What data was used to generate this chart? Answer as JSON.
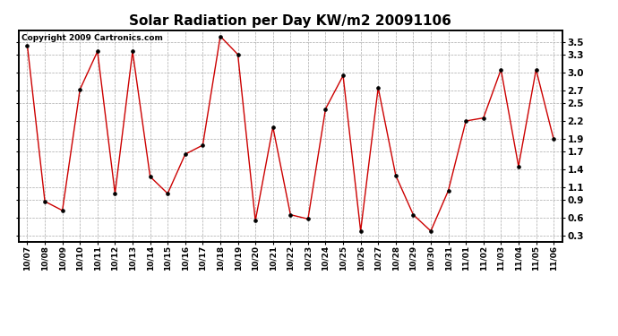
{
  "title": "Solar Radiation per Day KW/m2 20091106",
  "copyright": "Copyright 2009 Cartronics.com",
  "labels": [
    "10/07",
    "10/08",
    "10/09",
    "10/10",
    "10/11",
    "10/12",
    "10/13",
    "10/14",
    "10/15",
    "10/16",
    "10/17",
    "10/18",
    "10/19",
    "10/20",
    "10/21",
    "10/22",
    "10/23",
    "10/24",
    "10/25",
    "10/26",
    "10/27",
    "10/28",
    "10/29",
    "10/30",
    "10/31",
    "11/01",
    "11/02",
    "11/03",
    "11/04",
    "11/05",
    "11/06"
  ],
  "values": [
    3.45,
    0.87,
    0.72,
    2.72,
    3.35,
    1.0,
    3.35,
    1.28,
    1.0,
    1.65,
    1.8,
    3.6,
    3.3,
    0.55,
    2.1,
    0.65,
    0.58,
    2.4,
    2.95,
    0.38,
    2.75,
    1.3,
    0.65,
    0.38,
    1.05,
    2.2,
    2.25,
    3.05,
    1.45,
    3.05,
    1.9
  ],
  "line_color": "#cc0000",
  "marker_color": "#000000",
  "bg_color": "#ffffff",
  "plot_bg_color": "#ffffff",
  "grid_color": "#aaaaaa",
  "ylim": [
    0.2,
    3.7
  ],
  "yticks": [
    0.3,
    0.6,
    0.9,
    1.1,
    1.4,
    1.7,
    1.9,
    2.2,
    2.5,
    2.7,
    3.0,
    3.3,
    3.5
  ],
  "title_fontsize": 11,
  "tick_fontsize": 6.5,
  "copyright_fontsize": 6.5
}
